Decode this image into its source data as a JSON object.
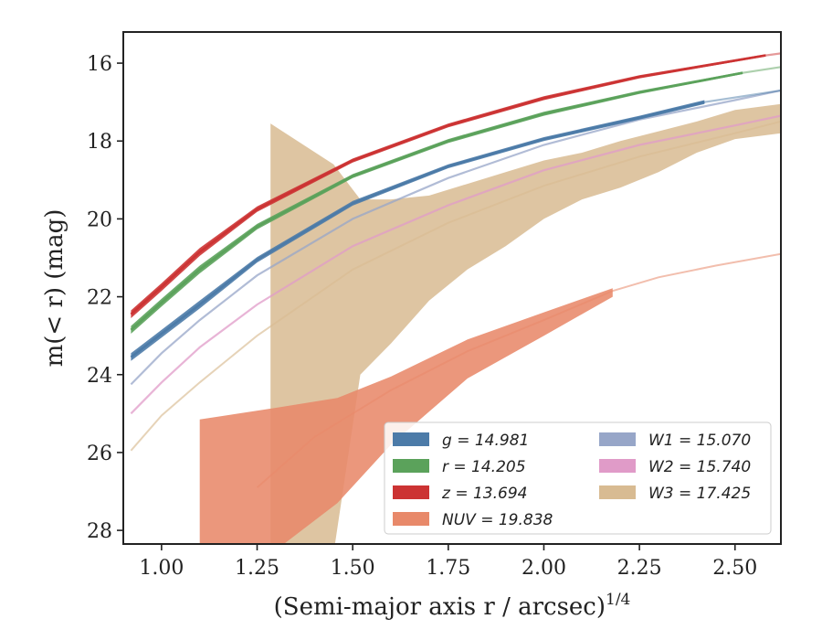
{
  "chart_data": {
    "type": "area",
    "xlabel": "(Semi-major axis r / arcsec)",
    "xlabel_exponent": "1/4",
    "ylabel": "m(< r) (mag)",
    "xlim": [
      0.9,
      2.62
    ],
    "ylim": [
      28.35,
      15.2
    ],
    "y_inverted": true,
    "x_ticks": [
      1.0,
      1.25,
      1.5,
      1.75,
      2.0,
      2.25,
      2.5
    ],
    "x_tick_labels": [
      "1.00",
      "1.25",
      "1.50",
      "1.75",
      "2.00",
      "2.25",
      "2.50"
    ],
    "y_ticks": [
      16,
      18,
      20,
      22,
      24,
      26,
      28
    ],
    "y_tick_labels": [
      "16",
      "18",
      "20",
      "22",
      "24",
      "26",
      "28"
    ],
    "grid": false,
    "legend_position": "lower-right",
    "series": [
      {
        "name": "g = 14.981",
        "band": "g",
        "value": "14.981",
        "color": "#4c7ba8",
        "x_solid_end": 2.42,
        "x": [
          0.92,
          1.0,
          1.1,
          1.25,
          1.5,
          1.75,
          2.0,
          2.25,
          2.42,
          2.62
        ],
        "y": [
          23.55,
          22.95,
          22.2,
          21.05,
          19.6,
          18.65,
          17.95,
          17.4,
          17.0,
          16.7
        ],
        "y_low": [
          23.65,
          23.05,
          22.3,
          21.12,
          19.66,
          18.7,
          18.0,
          17.45,
          17.05,
          16.73
        ],
        "y_high": [
          23.45,
          22.85,
          22.1,
          20.98,
          19.54,
          18.6,
          17.9,
          17.35,
          16.95,
          16.67
        ]
      },
      {
        "name": "r = 14.205",
        "band": "r",
        "value": "14.205",
        "color": "#5ba25b",
        "x_solid_end": 2.52,
        "x": [
          0.92,
          1.0,
          1.1,
          1.25,
          1.5,
          1.75,
          2.0,
          2.25,
          2.52,
          2.62
        ],
        "y": [
          22.85,
          22.15,
          21.3,
          20.2,
          18.9,
          18.0,
          17.3,
          16.75,
          16.25,
          16.1
        ],
        "y_low": [
          22.95,
          22.25,
          21.4,
          20.27,
          18.95,
          18.05,
          17.35,
          16.79,
          16.28,
          16.13
        ],
        "y_high": [
          22.75,
          22.05,
          21.2,
          20.13,
          18.85,
          17.95,
          17.25,
          16.71,
          16.22,
          16.07
        ]
      },
      {
        "name": "z = 13.694",
        "band": "z",
        "value": "13.694",
        "color": "#cc3333",
        "x_solid_end": 2.58,
        "x": [
          0.92,
          1.0,
          1.1,
          1.25,
          1.5,
          1.75,
          2.0,
          2.25,
          2.58,
          2.62
        ],
        "y": [
          22.45,
          21.75,
          20.85,
          19.75,
          18.5,
          17.6,
          16.9,
          16.35,
          15.8,
          15.75
        ],
        "y_low": [
          22.55,
          21.85,
          20.95,
          19.82,
          18.55,
          17.65,
          16.95,
          16.39,
          15.83,
          15.78
        ],
        "y_high": [
          22.35,
          21.65,
          20.75,
          19.68,
          18.45,
          17.55,
          16.85,
          16.31,
          15.77,
          15.72
        ]
      },
      {
        "name": "NUV = 19.838",
        "band": "NUV",
        "value": "19.838",
        "color": "#e8896a",
        "x_band": [
          1.1,
          1.3,
          1.46,
          1.6,
          1.8,
          2.0,
          2.18
        ],
        "y_band_low": [
          28.6,
          28.5,
          27.3,
          25.8,
          24.1,
          23.0,
          22.0
        ],
        "y_band_high": [
          25.15,
          24.85,
          24.6,
          24.05,
          23.1,
          22.4,
          21.78
        ],
        "x_thin": [
          1.25,
          1.4,
          1.6,
          1.8,
          2.0,
          2.18,
          2.3,
          2.45,
          2.62
        ],
        "y_thin": [
          26.9,
          25.6,
          24.4,
          23.4,
          22.6,
          21.85,
          21.5,
          21.2,
          20.9
        ]
      },
      {
        "name": "W1 = 15.070",
        "band": "W1",
        "value": "15.070",
        "color": "#97a6c8",
        "x": [
          0.92,
          1.0,
          1.1,
          1.25,
          1.5,
          1.75,
          2.0,
          2.25,
          2.5,
          2.62
        ],
        "y": [
          24.25,
          23.45,
          22.6,
          21.45,
          20.0,
          18.95,
          18.1,
          17.45,
          16.95,
          16.7
        ]
      },
      {
        "name": "W2 = 15.740",
        "band": "W2",
        "value": "15.740",
        "color": "#e09bc8",
        "x": [
          0.92,
          1.0,
          1.1,
          1.25,
          1.5,
          1.75,
          2.0,
          2.25,
          2.5,
          2.62
        ],
        "y": [
          25.0,
          24.2,
          23.3,
          22.2,
          20.7,
          19.65,
          18.75,
          18.1,
          17.6,
          17.35
        ]
      },
      {
        "name": "W3 = 17.425",
        "band": "W3",
        "value": "17.425",
        "color": "#d8bb92",
        "x": [
          0.92,
          1.0,
          1.1,
          1.25,
          1.5,
          1.75,
          2.0,
          2.25,
          2.5,
          2.62
        ],
        "y": [
          25.95,
          25.05,
          24.2,
          23.0,
          21.3,
          20.1,
          19.15,
          18.4,
          17.8,
          17.5
        ],
        "x_band": [
          1.285,
          1.45,
          1.52,
          1.6,
          1.7,
          1.8,
          1.9,
          2.0,
          2.1,
          2.2,
          2.3,
          2.4,
          2.5,
          2.62
        ],
        "y_band_low": [
          28.6,
          28.6,
          24.0,
          23.2,
          22.1,
          21.3,
          20.7,
          20.0,
          19.5,
          19.2,
          18.8,
          18.3,
          17.95,
          17.8
        ],
        "y_band_high": [
          17.55,
          18.6,
          19.5,
          19.5,
          19.4,
          19.1,
          18.8,
          18.5,
          18.3,
          18.0,
          17.75,
          17.5,
          17.2,
          17.05
        ]
      }
    ]
  }
}
